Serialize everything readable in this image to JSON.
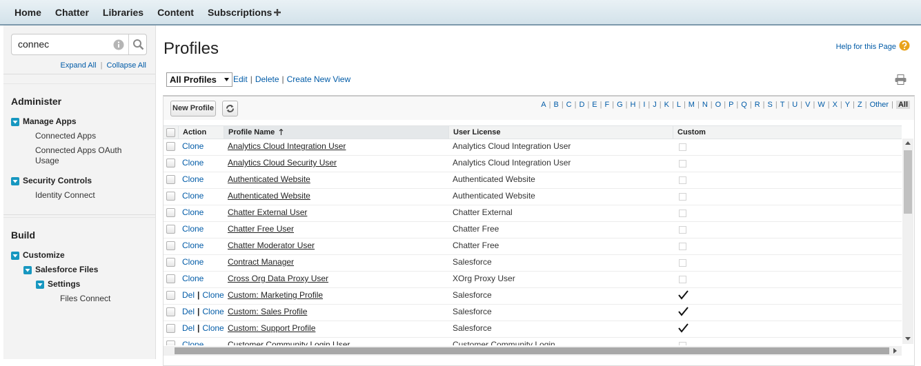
{
  "nav": {
    "tabs": [
      "Home",
      "Chatter",
      "Libraries",
      "Content",
      "Subscriptions"
    ]
  },
  "sidebar": {
    "search": "connec",
    "expand_all": "Expand All",
    "collapse_all": "Collapse All",
    "separator": "|",
    "sections": [
      {
        "title": "Administer",
        "nodes": [
          {
            "label": "Manage Apps",
            "children": [
              {
                "label": "Connected Apps"
              },
              {
                "label": "Connected Apps OAuth Usage"
              }
            ]
          },
          {
            "label": "Security Controls",
            "children": [
              {
                "label": "Identity Connect"
              }
            ]
          }
        ]
      },
      {
        "title": "Build",
        "nodes": [
          {
            "label": "Customize",
            "children": [
              {
                "label": "Salesforce Files",
                "children": [
                  {
                    "label": "Settings",
                    "children": [
                      {
                        "label": "Files Connect"
                      }
                    ]
                  }
                ]
              }
            ]
          }
        ]
      }
    ]
  },
  "main": {
    "title": "Profiles",
    "help": "Help for this Page",
    "view": "All Profiles",
    "separator": "|",
    "view_links": [
      "Edit",
      "Delete",
      "Create New View"
    ],
    "new_button": "New Profile",
    "alphabet": [
      {
        "label": "A"
      },
      {
        "label": "B"
      },
      {
        "label": "C"
      },
      {
        "label": "D"
      },
      {
        "label": "E"
      },
      {
        "label": "F"
      },
      {
        "label": "G"
      },
      {
        "label": "H"
      },
      {
        "label": "I"
      },
      {
        "label": "J"
      },
      {
        "label": "K"
      },
      {
        "label": "L"
      },
      {
        "label": "M"
      },
      {
        "label": "N"
      },
      {
        "label": "O"
      },
      {
        "label": "P"
      },
      {
        "label": "Q"
      },
      {
        "label": "R"
      },
      {
        "label": "S"
      },
      {
        "label": "T"
      },
      {
        "label": "U"
      },
      {
        "label": "V"
      },
      {
        "label": "W"
      },
      {
        "label": "X"
      },
      {
        "label": "Y"
      },
      {
        "label": "Z"
      },
      {
        "label": "Other"
      },
      {
        "label": "All",
        "selected": true
      }
    ],
    "table": {
      "headers": [
        "Action",
        "Profile Name",
        "User License",
        "Custom"
      ],
      "rows": [
        {
          "actions": [
            "Clone"
          ],
          "name": "Analytics Cloud Integration User",
          "license": "Analytics Cloud Integration User",
          "custom": false
        },
        {
          "actions": [
            "Clone"
          ],
          "name": "Analytics Cloud Security User",
          "license": "Analytics Cloud Integration User",
          "custom": false
        },
        {
          "actions": [
            "Clone"
          ],
          "name": "Authenticated Website",
          "license": "Authenticated Website",
          "custom": false
        },
        {
          "actions": [
            "Clone"
          ],
          "name": "Authenticated Website",
          "license": "Authenticated Website",
          "custom": false
        },
        {
          "actions": [
            "Clone"
          ],
          "name": "Chatter External User",
          "license": "Chatter External",
          "custom": false
        },
        {
          "actions": [
            "Clone"
          ],
          "name": "Chatter Free User",
          "license": "Chatter Free",
          "custom": false
        },
        {
          "actions": [
            "Clone"
          ],
          "name": "Chatter Moderator User",
          "license": "Chatter Free",
          "custom": false
        },
        {
          "actions": [
            "Clone"
          ],
          "name": "Contract Manager",
          "license": "Salesforce",
          "custom": false
        },
        {
          "actions": [
            "Clone"
          ],
          "name": "Cross Org Data Proxy User",
          "license": "XOrg Proxy User",
          "custom": false
        },
        {
          "actions": [
            "Del",
            "Clone"
          ],
          "name": "Custom: Marketing Profile",
          "license": "Salesforce",
          "custom": true
        },
        {
          "actions": [
            "Del",
            "Clone"
          ],
          "name": "Custom: Sales Profile",
          "license": "Salesforce",
          "custom": true
        },
        {
          "actions": [
            "Del",
            "Clone"
          ],
          "name": "Custom: Support Profile",
          "license": "Salesforce",
          "custom": true
        },
        {
          "actions": [
            "Clone"
          ],
          "name": "Customer Community Login User",
          "license": "Customer Community Login",
          "custom": false
        }
      ]
    }
  }
}
